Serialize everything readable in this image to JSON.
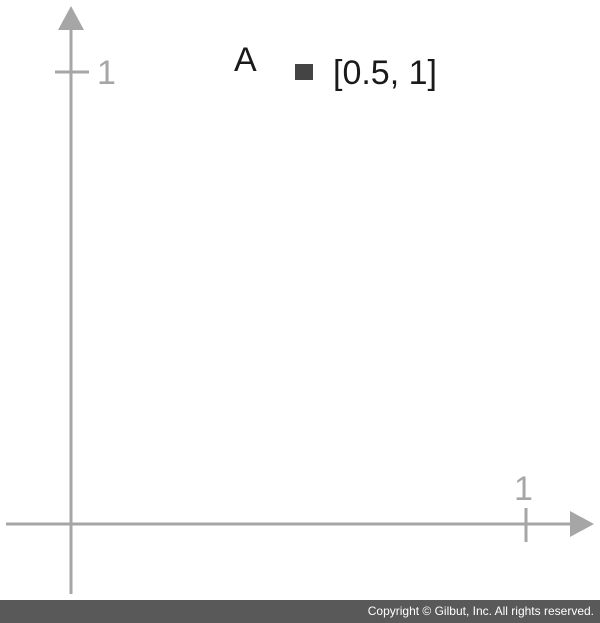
{
  "diagram": {
    "x_tick_label": "1",
    "y_tick_label": "1",
    "point": {
      "name": "A",
      "coordinates_text": "[0.5, 1]",
      "x": 0.5,
      "y": 1
    },
    "colors": {
      "axis": "#a6a6a6",
      "marker": "#444444",
      "text": "#1a1a1a"
    }
  },
  "footer": {
    "copyright": "Copyright © Gilbut, Inc. All rights reserved.",
    "background": "#595959"
  }
}
